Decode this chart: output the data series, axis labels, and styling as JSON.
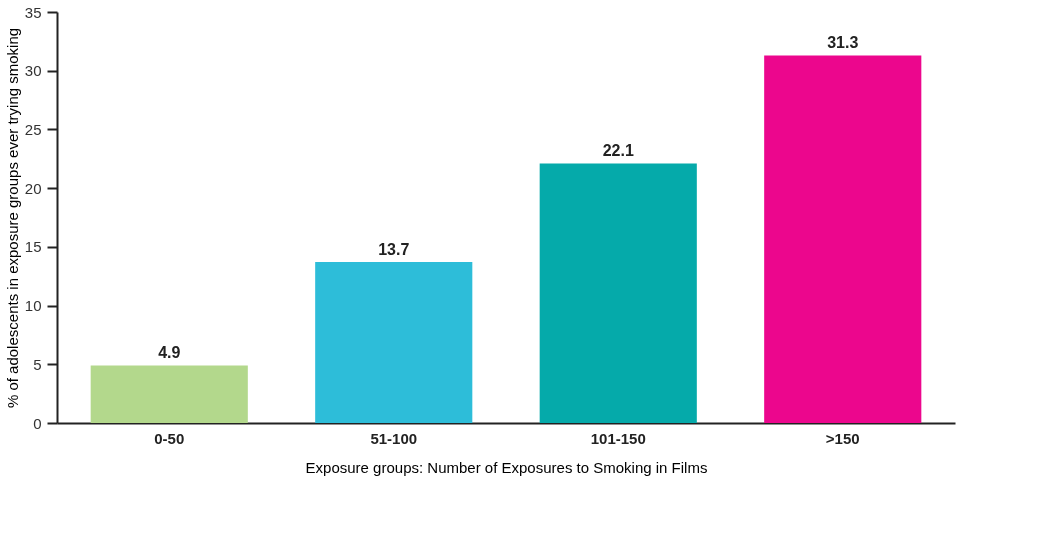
{
  "chart_data": {
    "type": "bar",
    "xlabel": "Exposure groups: Number of Exposures to Smoking in Films",
    "ylabel": "% of adolescents in exposure groups ever trying smoking",
    "categories": [
      "0-50",
      "51-100",
      "101-150",
      ">150"
    ],
    "values": [
      4.9,
      13.7,
      22.1,
      31.3
    ],
    "colors": [
      "#b3d88c",
      "#2dbdd9",
      "#05aaaa",
      "#ec068d"
    ],
    "ylim": [
      0,
      35
    ],
    "yticks": [
      0,
      5,
      10,
      15,
      20,
      25,
      30,
      35
    ],
    "grid": false,
    "data_labels": true
  }
}
